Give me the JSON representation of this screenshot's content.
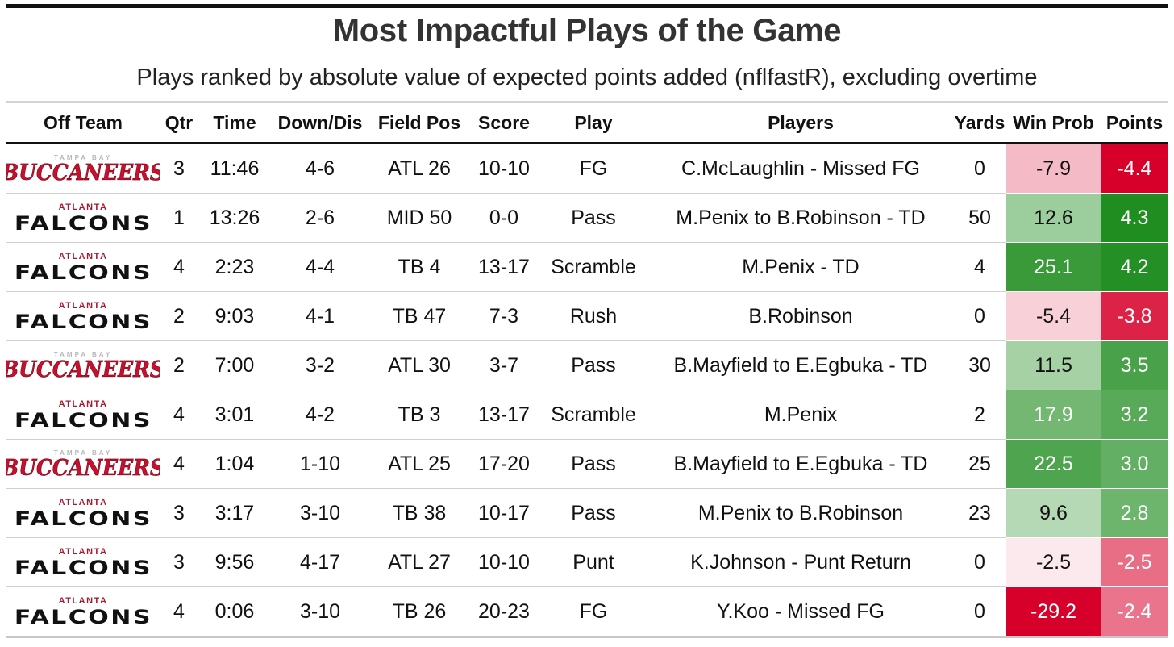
{
  "title": "Most Impactful Plays of the Game",
  "subtitle": "Plays ranked by absolute value of expected points added (nflfastR), excluding overtime",
  "columns": [
    "Off Team",
    "Qtr",
    "Time",
    "Down/Dis",
    "Field Pos",
    "Score",
    "Play",
    "Players",
    "Yards",
    "Win Prob",
    "Points"
  ],
  "logos": {
    "falcons": {
      "small": "ATLANTA",
      "big": "FALCONS"
    },
    "bucs": {
      "small": "TAMPA BAY",
      "big": "BUCCANEERS"
    }
  },
  "colors": {
    "strong_green": "#1a8a1a",
    "strong_red": "#d6002a",
    "neutral": "#ffffff"
  },
  "chart_data": {
    "type": "table",
    "title": "Most Impactful Plays of the Game",
    "subtitle": "Plays ranked by absolute value of expected points added (nflfastR), excluding overtime",
    "rows": [
      {
        "team": "bucs",
        "qtr": "3",
        "time": "11:46",
        "down": "4-6",
        "field": "ATL 26",
        "score": "10-10",
        "play": "FG",
        "players": "C.McLaughlin - Missed FG",
        "yards": "0",
        "win_prob": "-7.9",
        "points": "-4.4"
      },
      {
        "team": "falcons",
        "qtr": "1",
        "time": "13:26",
        "down": "2-6",
        "field": "MID 50",
        "score": "0-0",
        "play": "Pass",
        "players": "M.Penix to B.Robinson - TD",
        "yards": "50",
        "win_prob": "12.6",
        "points": "4.3"
      },
      {
        "team": "falcons",
        "qtr": "4",
        "time": "2:23",
        "down": "4-4",
        "field": "TB 4",
        "score": "13-17",
        "play": "Scramble",
        "players": "M.Penix - TD",
        "yards": "4",
        "win_prob": "25.1",
        "points": "4.2"
      },
      {
        "team": "falcons",
        "qtr": "2",
        "time": "9:03",
        "down": "4-1",
        "field": "TB 47",
        "score": "7-3",
        "play": "Rush",
        "players": "B.Robinson",
        "yards": "0",
        "win_prob": "-5.4",
        "points": "-3.8"
      },
      {
        "team": "bucs",
        "qtr": "2",
        "time": "7:00",
        "down": "3-2",
        "field": "ATL 30",
        "score": "3-7",
        "play": "Pass",
        "players": "B.Mayfield to E.Egbuka - TD",
        "yards": "30",
        "win_prob": "11.5",
        "points": "3.5"
      },
      {
        "team": "falcons",
        "qtr": "4",
        "time": "3:01",
        "down": "4-2",
        "field": "TB 3",
        "score": "13-17",
        "play": "Scramble",
        "players": "M.Penix",
        "yards": "2",
        "win_prob": "17.9",
        "points": "3.2"
      },
      {
        "team": "bucs",
        "qtr": "4",
        "time": "1:04",
        "down": "1-10",
        "field": "ATL 25",
        "score": "17-20",
        "play": "Pass",
        "players": "B.Mayfield to E.Egbuka - TD",
        "yards": "25",
        "win_prob": "22.5",
        "points": "3.0"
      },
      {
        "team": "falcons",
        "qtr": "3",
        "time": "3:17",
        "down": "3-10",
        "field": "TB 38",
        "score": "10-17",
        "play": "Pass",
        "players": "M.Penix to B.Robinson",
        "yards": "23",
        "win_prob": "9.6",
        "points": "2.8"
      },
      {
        "team": "falcons",
        "qtr": "3",
        "time": "9:56",
        "down": "4-17",
        "field": "ATL 27",
        "score": "10-10",
        "play": "Punt",
        "players": "K.Johnson - Punt Return",
        "yards": "0",
        "win_prob": "-2.5",
        "points": "-2.5"
      },
      {
        "team": "falcons",
        "qtr": "4",
        "time": "0:06",
        "down": "3-10",
        "field": "TB 26",
        "score": "20-23",
        "play": "FG",
        "players": "Y.Koo - Missed FG",
        "yards": "0",
        "win_prob": "-29.2",
        "points": "-2.4"
      }
    ]
  }
}
